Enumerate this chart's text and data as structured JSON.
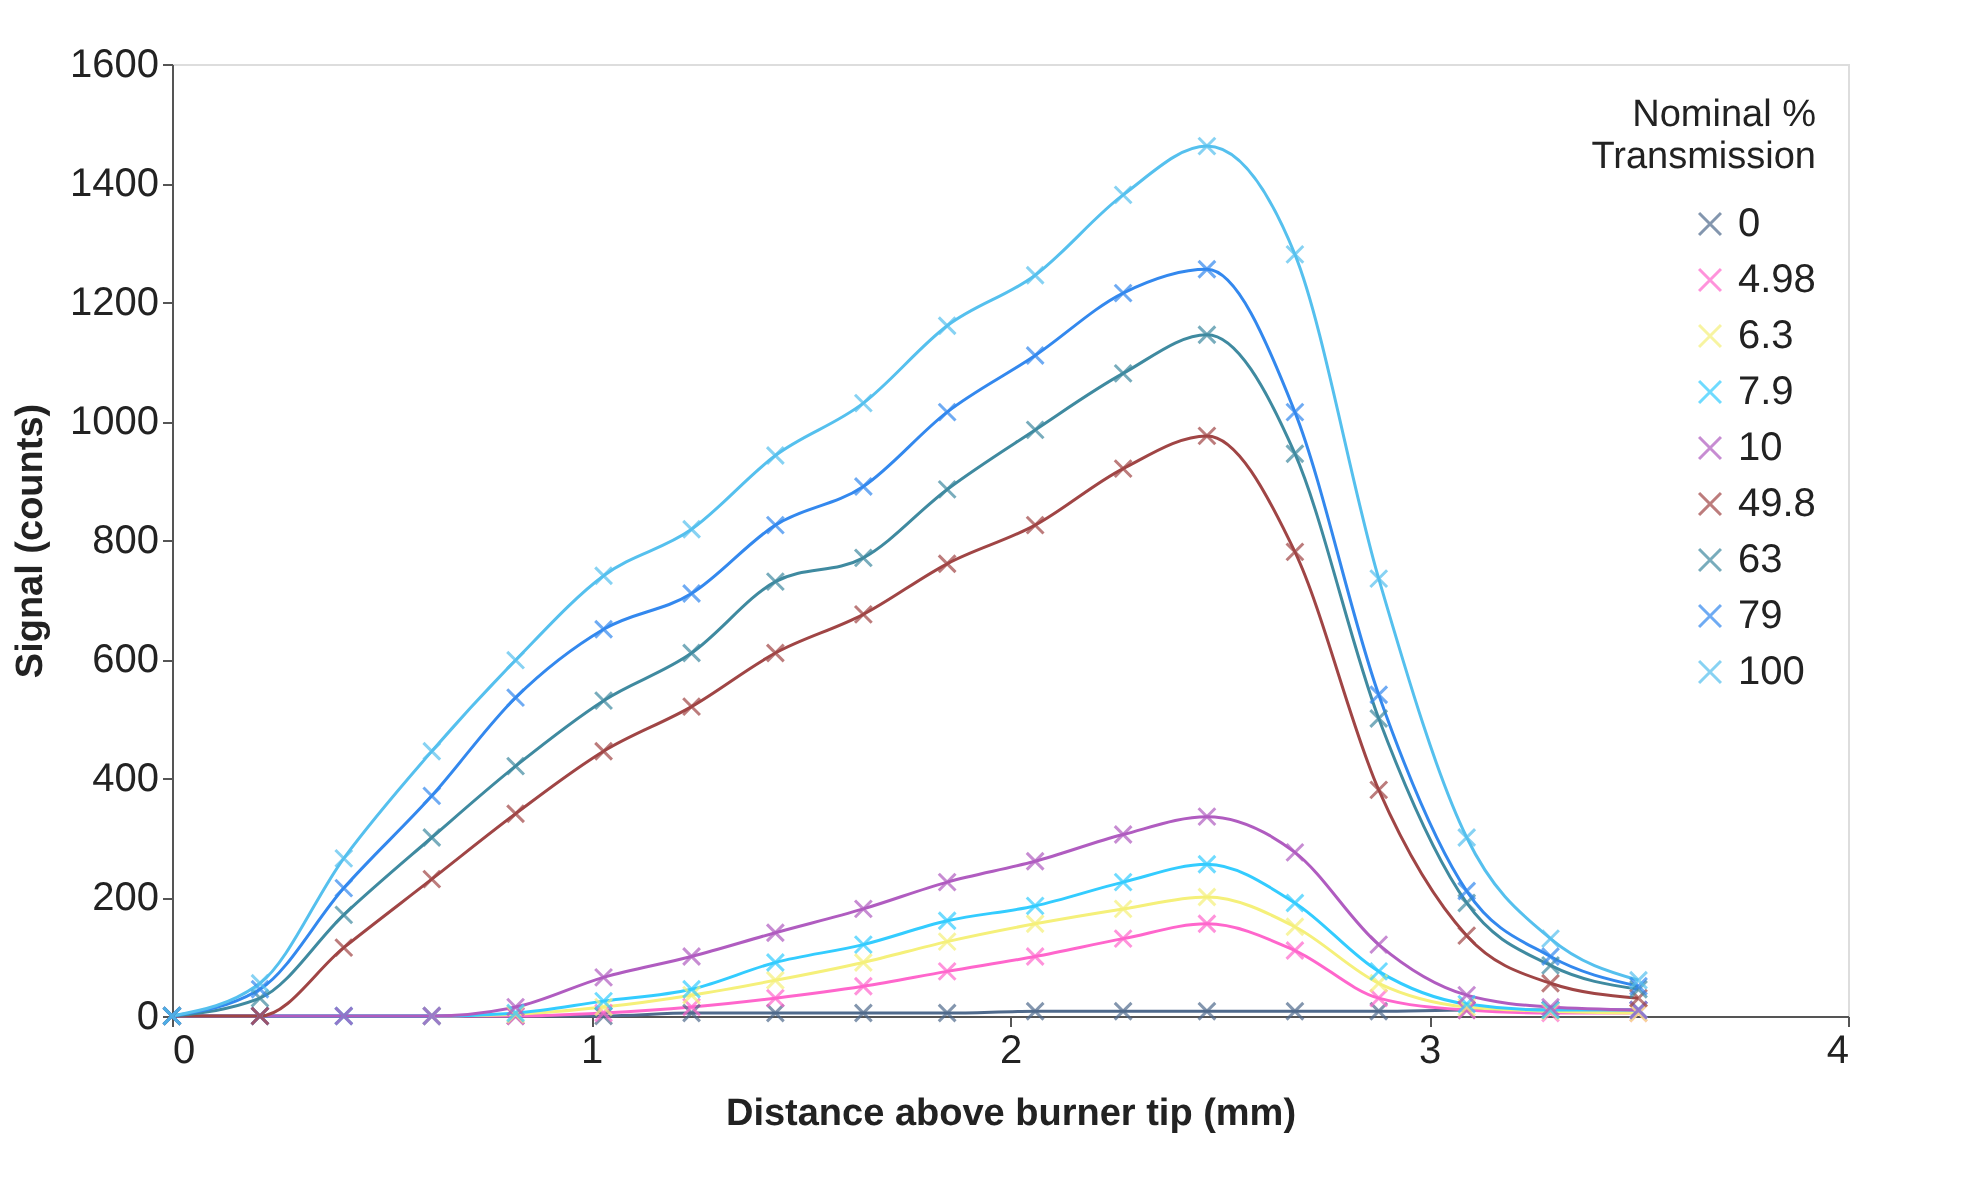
{
  "chart_data": {
    "type": "line",
    "xlabel": "Distance above burner tip (mm)",
    "ylabel": "Signal (counts)",
    "legend_title": "Nominal %\nTransmission",
    "legend": "top right",
    "marker": "cross",
    "line_style": "solid",
    "grid": false,
    "x": [
      0,
      0.21,
      0.41,
      0.62,
      0.82,
      1.03,
      1.24,
      1.44,
      1.65,
      1.85,
      2.06,
      2.27,
      2.47,
      2.68,
      2.88,
      3.09,
      3.29,
      3.5
    ],
    "xlim": [
      0,
      4
    ],
    "xticks": [
      0,
      1,
      2,
      3,
      4
    ],
    "ylim": [
      0,
      1600
    ],
    "yticks": [
      0,
      200,
      400,
      600,
      800,
      1000,
      1200,
      1400,
      1600
    ],
    "series": [
      {
        "name": "0",
        "color": "#4f6a8c",
        "values": [
          0,
          0,
          0,
          0,
          0,
          0,
          5,
          5,
          5,
          5,
          8,
          8,
          8,
          8,
          8,
          10,
          10,
          10
        ]
      },
      {
        "name": "4.98",
        "color": "#ff66cc",
        "values": [
          null,
          null,
          null,
          0,
          0,
          5,
          15,
          30,
          50,
          75,
          100,
          130,
          155,
          110,
          30,
          10,
          5,
          5
        ]
      },
      {
        "name": "6.3",
        "color": "#f5f07a",
        "values": [
          null,
          null,
          null,
          0,
          3,
          15,
          35,
          60,
          90,
          125,
          155,
          180,
          200,
          150,
          55,
          15,
          8,
          5
        ]
      },
      {
        "name": "7.9",
        "color": "#33ccff",
        "values": [
          0,
          0,
          0,
          0,
          5,
          25,
          45,
          90,
          120,
          160,
          185,
          225,
          255,
          190,
          75,
          20,
          10,
          10
        ]
      },
      {
        "name": "10",
        "color": "#b05cc0",
        "values": [
          0,
          0,
          0,
          0,
          15,
          65,
          100,
          140,
          180,
          225,
          260,
          305,
          335,
          275,
          120,
          35,
          15,
          10
        ]
      },
      {
        "name": "49.8",
        "color": "#a04545",
        "values": [
          0,
          0,
          115,
          230,
          340,
          445,
          520,
          610,
          675,
          760,
          825,
          920,
          975,
          780,
          380,
          135,
          55,
          30
        ]
      },
      {
        "name": "63",
        "color": "#3f8aa0",
        "values": [
          0,
          30,
          170,
          300,
          420,
          530,
          610,
          730,
          770,
          885,
          985,
          1080,
          1145,
          945,
          500,
          190,
          85,
          45
        ]
      },
      {
        "name": "79",
        "color": "#3388ee",
        "values": [
          0,
          45,
          215,
          370,
          535,
          650,
          710,
          825,
          890,
          1015,
          1110,
          1215,
          1255,
          1015,
          540,
          210,
          100,
          50
        ]
      },
      {
        "name": "100",
        "color": "#55c0ee",
        "values": [
          0,
          55,
          265,
          445,
          598,
          740,
          818,
          942,
          1030,
          1160,
          1245,
          1380,
          1462,
          1280,
          735,
          300,
          130,
          60
        ]
      }
    ]
  }
}
